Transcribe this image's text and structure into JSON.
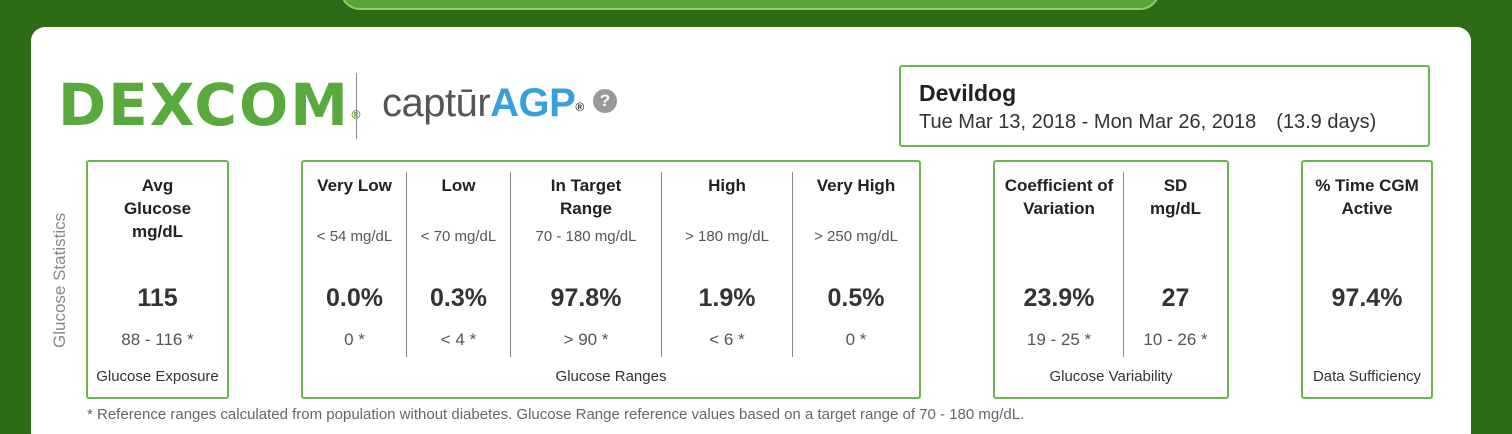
{
  "header": {
    "logo_dexcom": "Dexcom",
    "logo_captur": "captūr",
    "logo_agp": "AGP",
    "help_icon": "question-circle-icon"
  },
  "patient": {
    "name": "Devildog",
    "date_range": "Tue Mar 13, 2018 - Mon Mar 26, 2018",
    "days": "(13.9 days)"
  },
  "section_label": "Glucose Statistics",
  "exposure": {
    "header": "Avg Glucose mg/dL",
    "value": "115",
    "ref": "88 - 116 *",
    "footer": "Glucose Exposure"
  },
  "ranges": {
    "footer": "Glucose Ranges",
    "columns": [
      {
        "header": "Very Low",
        "sub": "< 54 mg/dL",
        "value": "0.0%",
        "ref": "0 *"
      },
      {
        "header": "Low",
        "sub": "< 70 mg/dL",
        "value": "0.3%",
        "ref": "< 4 *"
      },
      {
        "header": "In Target Range",
        "sub": "70 - 180 mg/dL",
        "value": "97.8%",
        "ref": "> 90 *"
      },
      {
        "header": "High",
        "sub": "> 180 mg/dL",
        "value": "1.9%",
        "ref": "< 6 *"
      },
      {
        "header": "Very High",
        "sub": "> 250 mg/dL",
        "value": "0.5%",
        "ref": "0 *"
      }
    ]
  },
  "variability": {
    "footer": "Glucose Variability",
    "columns": [
      {
        "header": "Coefficient of Variation",
        "value": "23.9%",
        "ref": "19 - 25 *"
      },
      {
        "header": "SD mg/dL",
        "value": "27",
        "ref": "10 - 26 *"
      }
    ]
  },
  "sufficiency": {
    "header": "% Time CGM Active",
    "value": "97.4%",
    "footer": "Data Sufficiency"
  },
  "footnote": "* Reference ranges calculated from population without diabetes. Glucose Range reference values based on a target range of 70 - 180 mg/dL."
}
